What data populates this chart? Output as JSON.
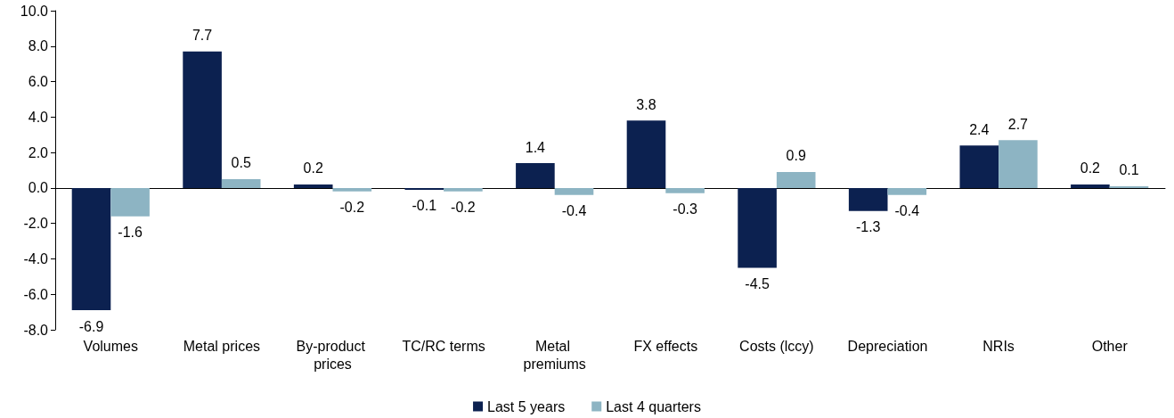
{
  "chart_data": {
    "type": "bar",
    "categories": [
      "Volumes",
      "Metal prices",
      "By-product prices",
      "TC/RC terms",
      "Metal premiums",
      "FX effects",
      "Costs (lccy)",
      "Depreciation",
      "NRIs",
      "Other"
    ],
    "series": [
      {
        "name": "Last 5 years",
        "color": "#0c2150",
        "values": [
          -6.9,
          7.7,
          0.2,
          -0.1,
          1.4,
          3.8,
          -4.5,
          -1.3,
          2.4,
          0.2
        ]
      },
      {
        "name": "Last 4 quarters",
        "color": "#8db4c3",
        "values": [
          -1.6,
          0.5,
          -0.2,
          -0.2,
          -0.4,
          -0.3,
          0.9,
          -0.4,
          2.7,
          0.1
        ]
      }
    ],
    "ylim": [
      -8,
      10
    ],
    "yticks": [
      {
        "value": -8,
        "label": "-8.0"
      },
      {
        "value": -6,
        "label": "-6.0"
      },
      {
        "value": -4,
        "label": "-4.0"
      },
      {
        "value": -2,
        "label": "-2.0"
      },
      {
        "value": 0,
        "label": "0.0"
      },
      {
        "value": 2,
        "label": "2.0"
      },
      {
        "value": 4,
        "label": "4.0"
      },
      {
        "value": 6,
        "label": "6.0"
      },
      {
        "value": 8,
        "label": "8.0"
      },
      {
        "value": 10,
        "label": "10.0"
      }
    ],
    "data_labels": true,
    "legend": "bottom"
  }
}
